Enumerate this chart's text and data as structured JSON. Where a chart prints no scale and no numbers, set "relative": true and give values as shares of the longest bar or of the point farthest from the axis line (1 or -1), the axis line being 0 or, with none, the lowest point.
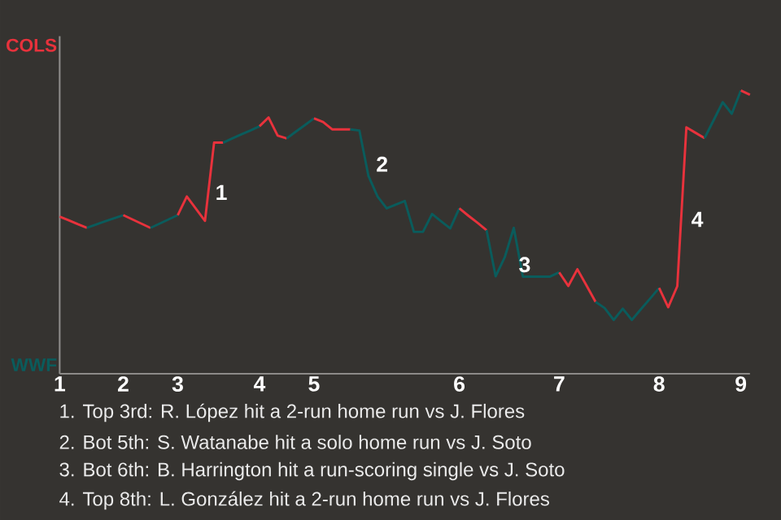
{
  "chart_data": {
    "type": "line",
    "relative": true,
    "marker": "none",
    "categories": [
      "1",
      null,
      null,
      null,
      null,
      null,
      null,
      "2",
      null,
      null,
      null,
      null,
      null,
      "3",
      null,
      null,
      null,
      null,
      null,
      null,
      null,
      null,
      "4",
      null,
      null,
      null,
      null,
      null,
      "5",
      null,
      null,
      null,
      null,
      null,
      null,
      null,
      null,
      null,
      null,
      null,
      null,
      null,
      null,
      null,
      "6",
      null,
      null,
      null,
      null,
      null,
      null,
      null,
      null,
      null,
      null,
      "7",
      null,
      null,
      null,
      null,
      null,
      null,
      null,
      null,
      null,
      null,
      "8",
      null,
      null,
      null,
      null,
      null,
      null,
      null,
      null,
      "9",
      null
    ],
    "series": [
      {
        "color": "#e8323c",
        "values": [
          0.555,
          0.542,
          0.528,
          0.515,
          null,
          null,
          null,
          null,
          null,
          null,
          null,
          null,
          null,
          null,
          null,
          null,
          null,
          null,
          null,
          null,
          null,
          null,
          null,
          null,
          null,
          null,
          null,
          null,
          null,
          null,
          null,
          null,
          null,
          null,
          null,
          null,
          null,
          null,
          null,
          null,
          null,
          null,
          null,
          null,
          null,
          null,
          null,
          null,
          null,
          null,
          null,
          null,
          null,
          null,
          null,
          null,
          null,
          null,
          null,
          null,
          null,
          null,
          null,
          null,
          null,
          null,
          null,
          null,
          null,
          null,
          null,
          null,
          null,
          null,
          null,
          null,
          null
        ]
      },
      {
        "color": "#0a5c5c",
        "values": [
          null,
          null,
          null,
          0.515,
          0.527,
          0.538,
          0.549,
          0.56,
          null,
          null,
          null,
          null,
          null,
          null,
          null,
          null,
          null,
          null,
          null,
          null,
          null,
          null,
          null,
          null,
          null,
          null,
          null,
          null,
          null,
          null,
          null,
          null,
          null,
          null,
          null,
          null,
          null,
          null,
          null,
          null,
          null,
          null,
          null,
          null,
          null,
          null,
          null,
          null,
          null,
          null,
          null,
          null,
          null,
          null,
          null,
          null,
          null,
          null,
          null,
          null,
          null,
          null,
          null,
          null,
          null,
          null,
          null,
          null,
          null,
          null,
          null,
          null,
          null,
          null,
          null,
          null,
          null
        ]
      },
      {
        "color": "#e8323c",
        "values": [
          null,
          null,
          null,
          null,
          null,
          null,
          null,
          0.56,
          0.545,
          0.53,
          0.515,
          null,
          null,
          null,
          null,
          null,
          null,
          null,
          null,
          null,
          null,
          null,
          null,
          null,
          null,
          null,
          null,
          null,
          null,
          null,
          null,
          null,
          null,
          null,
          null,
          null,
          null,
          null,
          null,
          null,
          null,
          null,
          null,
          null,
          null,
          null,
          null,
          null,
          null,
          null,
          null,
          null,
          null,
          null,
          null,
          null,
          null,
          null,
          null,
          null,
          null,
          null,
          null,
          null,
          null,
          null,
          null,
          null,
          null,
          null,
          null,
          null,
          null,
          null,
          null,
          null,
          null
        ]
      },
      {
        "color": "#0a5c5c",
        "values": [
          null,
          null,
          null,
          null,
          null,
          null,
          null,
          null,
          null,
          null,
          0.515,
          0.53,
          0.545,
          0.56,
          null,
          null,
          null,
          null,
          null,
          null,
          null,
          null,
          null,
          null,
          null,
          null,
          null,
          null,
          null,
          null,
          null,
          null,
          null,
          null,
          null,
          null,
          null,
          null,
          null,
          null,
          null,
          null,
          null,
          null,
          null,
          null,
          null,
          null,
          null,
          null,
          null,
          null,
          null,
          null,
          null,
          null,
          null,
          null,
          null,
          null,
          null,
          null,
          null,
          null,
          null,
          null,
          null,
          null,
          null,
          null,
          null,
          null,
          null,
          null,
          null,
          null,
          null
        ]
      },
      {
        "color": "#e8323c",
        "values": [
          null,
          null,
          null,
          null,
          null,
          null,
          null,
          null,
          null,
          null,
          null,
          null,
          null,
          0.56,
          0.626,
          0.583,
          0.54,
          0.816,
          0.816,
          null,
          null,
          null,
          null,
          null,
          null,
          null,
          null,
          null,
          null,
          null,
          null,
          null,
          null,
          null,
          null,
          null,
          null,
          null,
          null,
          null,
          null,
          null,
          null,
          null,
          null,
          null,
          null,
          null,
          null,
          null,
          null,
          null,
          null,
          null,
          null,
          null,
          null,
          null,
          null,
          null,
          null,
          null,
          null,
          null,
          null,
          null,
          null,
          null,
          null,
          null,
          null,
          null,
          null,
          null,
          null,
          null,
          null
        ]
      },
      {
        "color": "#0a5c5c",
        "values": [
          null,
          null,
          null,
          null,
          null,
          null,
          null,
          null,
          null,
          null,
          null,
          null,
          null,
          null,
          null,
          null,
          null,
          null,
          0.816,
          0.831,
          0.845,
          0.859,
          0.874,
          null,
          null,
          null,
          null,
          null,
          null,
          null,
          null,
          null,
          null,
          null,
          null,
          null,
          null,
          null,
          null,
          null,
          null,
          null,
          null,
          null,
          null,
          null,
          null,
          null,
          null,
          null,
          null,
          null,
          null,
          null,
          null,
          null,
          null,
          null,
          null,
          null,
          null,
          null,
          null,
          null,
          null,
          null,
          null,
          null,
          null,
          null,
          null,
          null,
          null,
          null,
          null,
          null,
          null
        ]
      },
      {
        "color": "#e8323c",
        "values": [
          null,
          null,
          null,
          null,
          null,
          null,
          null,
          null,
          null,
          null,
          null,
          null,
          null,
          null,
          null,
          null,
          null,
          null,
          null,
          null,
          null,
          null,
          0.874,
          0.905,
          0.841,
          0.831,
          null,
          null,
          null,
          null,
          null,
          null,
          null,
          null,
          null,
          null,
          null,
          null,
          null,
          null,
          null,
          null,
          null,
          null,
          null,
          null,
          null,
          null,
          null,
          null,
          null,
          null,
          null,
          null,
          null,
          null,
          null,
          null,
          null,
          null,
          null,
          null,
          null,
          null,
          null,
          null,
          null,
          null,
          null,
          null,
          null,
          null,
          null,
          null,
          null,
          null,
          null
        ]
      },
      {
        "color": "#0a5c5c",
        "values": [
          null,
          null,
          null,
          null,
          null,
          null,
          null,
          null,
          null,
          null,
          null,
          null,
          null,
          null,
          null,
          null,
          null,
          null,
          null,
          null,
          null,
          null,
          null,
          null,
          null,
          0.831,
          0.855,
          0.878,
          0.902,
          null,
          null,
          null,
          null,
          null,
          null,
          null,
          null,
          null,
          null,
          null,
          null,
          null,
          null,
          null,
          null,
          null,
          null,
          null,
          null,
          null,
          null,
          null,
          null,
          null,
          null,
          null,
          null,
          null,
          null,
          null,
          null,
          null,
          null,
          null,
          null,
          null,
          null,
          null,
          null,
          null,
          null,
          null,
          null,
          null,
          null,
          null,
          null
        ]
      },
      {
        "color": "#e8323c",
        "values": [
          null,
          null,
          null,
          null,
          null,
          null,
          null,
          null,
          null,
          null,
          null,
          null,
          null,
          null,
          null,
          null,
          null,
          null,
          null,
          null,
          null,
          null,
          null,
          null,
          null,
          null,
          null,
          null,
          0.902,
          0.889,
          0.863,
          0.863,
          0.863,
          null,
          null,
          null,
          null,
          null,
          null,
          null,
          null,
          null,
          null,
          null,
          null,
          null,
          null,
          null,
          null,
          null,
          null,
          null,
          null,
          null,
          null,
          null,
          null,
          null,
          null,
          null,
          null,
          null,
          null,
          null,
          null,
          null,
          null,
          null,
          null,
          null,
          null,
          null,
          null,
          null,
          null,
          null,
          null
        ]
      },
      {
        "color": "#0a5c5c",
        "values": [
          null,
          null,
          null,
          null,
          null,
          null,
          null,
          null,
          null,
          null,
          null,
          null,
          null,
          null,
          null,
          null,
          null,
          null,
          null,
          null,
          null,
          null,
          null,
          null,
          null,
          null,
          null,
          null,
          null,
          null,
          null,
          null,
          0.863,
          0.859,
          0.698,
          0.626,
          0.584,
          0.597,
          0.61,
          0.501,
          0.501,
          0.564,
          0.538,
          0.513,
          0.584,
          null,
          null,
          null,
          null,
          null,
          null,
          null,
          null,
          null,
          null,
          null,
          null,
          null,
          null,
          null,
          null,
          null,
          null,
          null,
          null,
          null,
          null,
          null,
          null,
          null,
          null,
          null,
          null,
          null,
          null,
          null,
          null
        ]
      },
      {
        "color": "#e8323c",
        "values": [
          null,
          null,
          null,
          null,
          null,
          null,
          null,
          null,
          null,
          null,
          null,
          null,
          null,
          null,
          null,
          null,
          null,
          null,
          null,
          null,
          null,
          null,
          null,
          null,
          null,
          null,
          null,
          null,
          null,
          null,
          null,
          null,
          null,
          null,
          null,
          null,
          null,
          null,
          null,
          null,
          null,
          null,
          null,
          null,
          0.584,
          0.558,
          0.533,
          0.507,
          null,
          null,
          null,
          null,
          null,
          null,
          null,
          null,
          null,
          null,
          null,
          null,
          null,
          null,
          null,
          null,
          null,
          null,
          null,
          null,
          null,
          null,
          null,
          null,
          null,
          null,
          null,
          null,
          null
        ]
      },
      {
        "color": "#0a5c5c",
        "values": [
          null,
          null,
          null,
          null,
          null,
          null,
          null,
          null,
          null,
          null,
          null,
          null,
          null,
          null,
          null,
          null,
          null,
          null,
          null,
          null,
          null,
          null,
          null,
          null,
          null,
          null,
          null,
          null,
          null,
          null,
          null,
          null,
          null,
          null,
          null,
          null,
          null,
          null,
          null,
          null,
          null,
          null,
          null,
          null,
          null,
          null,
          null,
          0.507,
          0.344,
          0.411,
          0.515,
          0.343,
          0.343,
          0.343,
          0.343,
          0.358,
          null,
          null,
          null,
          null,
          null,
          null,
          null,
          null,
          null,
          null,
          null,
          null,
          null,
          null,
          null,
          null,
          null,
          null,
          null,
          null,
          null
        ]
      },
      {
        "color": "#e8323c",
        "values": [
          null,
          null,
          null,
          null,
          null,
          null,
          null,
          null,
          null,
          null,
          null,
          null,
          null,
          null,
          null,
          null,
          null,
          null,
          null,
          null,
          null,
          null,
          null,
          null,
          null,
          null,
          null,
          null,
          null,
          null,
          null,
          null,
          null,
          null,
          null,
          null,
          null,
          null,
          null,
          null,
          null,
          null,
          null,
          null,
          null,
          null,
          null,
          null,
          null,
          null,
          null,
          null,
          null,
          null,
          null,
          0.358,
          0.31,
          0.369,
          0.312,
          0.254,
          null,
          null,
          null,
          null,
          null,
          null,
          null,
          null,
          null,
          null,
          null,
          null,
          null,
          null,
          null,
          null,
          null
        ]
      },
      {
        "color": "#0a5c5c",
        "values": [
          null,
          null,
          null,
          null,
          null,
          null,
          null,
          null,
          null,
          null,
          null,
          null,
          null,
          null,
          null,
          null,
          null,
          null,
          null,
          null,
          null,
          null,
          null,
          null,
          null,
          null,
          null,
          null,
          null,
          null,
          null,
          null,
          null,
          null,
          null,
          null,
          null,
          null,
          null,
          null,
          null,
          null,
          null,
          null,
          null,
          null,
          null,
          null,
          null,
          null,
          null,
          null,
          null,
          null,
          null,
          null,
          null,
          null,
          null,
          0.254,
          0.232,
          0.19,
          0.23,
          0.19,
          0.228,
          0.265,
          0.303,
          null,
          null,
          null,
          null,
          null,
          null,
          null,
          null,
          null,
          null
        ]
      },
      {
        "color": "#e8323c",
        "values": [
          null,
          null,
          null,
          null,
          null,
          null,
          null,
          null,
          null,
          null,
          null,
          null,
          null,
          null,
          null,
          null,
          null,
          null,
          null,
          null,
          null,
          null,
          null,
          null,
          null,
          null,
          null,
          null,
          null,
          null,
          null,
          null,
          null,
          null,
          null,
          null,
          null,
          null,
          null,
          null,
          null,
          null,
          null,
          null,
          null,
          null,
          null,
          null,
          null,
          null,
          null,
          null,
          null,
          null,
          null,
          null,
          null,
          null,
          null,
          null,
          null,
          null,
          null,
          null,
          null,
          null,
          0.303,
          0.235,
          0.309,
          0.87,
          0.851,
          0.832,
          null,
          null,
          null,
          null,
          null
        ]
      },
      {
        "color": "#0a5c5c",
        "values": [
          null,
          null,
          null,
          null,
          null,
          null,
          null,
          null,
          null,
          null,
          null,
          null,
          null,
          null,
          null,
          null,
          null,
          null,
          null,
          null,
          null,
          null,
          null,
          null,
          null,
          null,
          null,
          null,
          null,
          null,
          null,
          null,
          null,
          null,
          null,
          null,
          null,
          null,
          null,
          null,
          null,
          null,
          null,
          null,
          null,
          null,
          null,
          null,
          null,
          null,
          null,
          null,
          null,
          null,
          null,
          null,
          null,
          null,
          null,
          null,
          null,
          null,
          null,
          null,
          null,
          null,
          null,
          null,
          null,
          null,
          null,
          0.832,
          0.895,
          0.959,
          0.918,
          1,
          null
        ]
      },
      {
        "color": "#e8323c",
        "values": [
          null,
          null,
          null,
          null,
          null,
          null,
          null,
          null,
          null,
          null,
          null,
          null,
          null,
          null,
          null,
          null,
          null,
          null,
          null,
          null,
          null,
          null,
          null,
          null,
          null,
          null,
          null,
          null,
          null,
          null,
          null,
          null,
          null,
          null,
          null,
          null,
          null,
          null,
          null,
          null,
          null,
          null,
          null,
          null,
          null,
          null,
          null,
          null,
          null,
          null,
          null,
          null,
          null,
          null,
          null,
          null,
          null,
          null,
          null,
          null,
          null,
          null,
          null,
          null,
          null,
          null,
          null,
          null,
          null,
          null,
          null,
          null,
          null,
          null,
          null,
          1,
          0.985
        ]
      }
    ],
    "annotations": [
      "COLS",
      "WWF",
      "1",
      "2",
      "3",
      "4",
      "1. Top 3rd: R. López hit a 2-run home run vs J. Flores",
      "2. Bot 5th: S. Watanabe hit a solo home run vs J. Soto",
      "3. Bot 6th: B. Harrington hit a run-scoring single vs J. Soto",
      "4. Top 8th: L. González hit a 2-run home run vs J. Flores"
    ]
  }
}
